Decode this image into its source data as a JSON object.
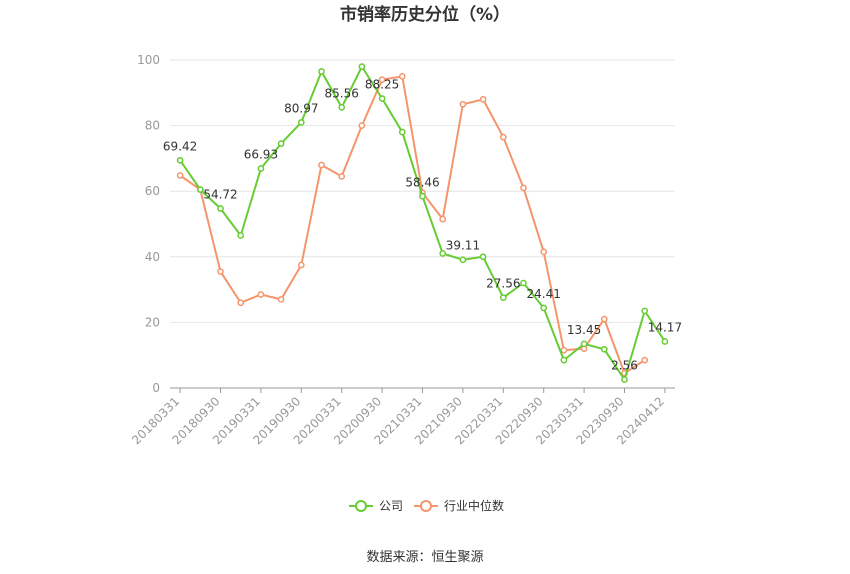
{
  "chart_data": {
    "type": "line",
    "title": "市销率历史分位（%）",
    "xlabel": "",
    "ylabel": "",
    "ylim": [
      0,
      100
    ],
    "yticks": [
      0,
      20,
      40,
      60,
      80,
      100
    ],
    "grid": true,
    "legend_position": "bottom",
    "x": [
      "20180331",
      "",
      "20180930",
      "",
      "20190331",
      "",
      "20190930",
      "",
      "20200331",
      "",
      "20200930",
      "",
      "20210331",
      "",
      "20210930",
      "",
      "20220331",
      "",
      "20220930",
      "",
      "20230331",
      "",
      "20230930",
      "",
      "20240412"
    ],
    "series": [
      {
        "name": "公司",
        "color": "#66cc33",
        "values": [
          69.42,
          60.5,
          54.72,
          46.5,
          66.93,
          74.5,
          80.97,
          96.5,
          85.56,
          98.0,
          88.25,
          78.0,
          58.46,
          41.0,
          39.11,
          40.0,
          27.56,
          32.0,
          24.41,
          8.5,
          13.45,
          11.8,
          2.56,
          23.5,
          14.17
        ],
        "data_labels": [
          {
            "index": 0,
            "text": "69.42"
          },
          {
            "index": 2,
            "text": "54.72"
          },
          {
            "index": 4,
            "text": "66.93"
          },
          {
            "index": 6,
            "text": "80.97"
          },
          {
            "index": 8,
            "text": "85.56"
          },
          {
            "index": 10,
            "text": "88.25"
          },
          {
            "index": 12,
            "text": "58.46"
          },
          {
            "index": 14,
            "text": "39.11"
          },
          {
            "index": 16,
            "text": "27.56"
          },
          {
            "index": 18,
            "text": "24.41"
          },
          {
            "index": 20,
            "text": "13.45"
          },
          {
            "index": 22,
            "text": "2.56"
          },
          {
            "index": 24,
            "text": "14.17"
          }
        ]
      },
      {
        "name": "行业中位数",
        "color": "#f4956b",
        "values": [
          64.8,
          60.5,
          35.5,
          26.0,
          28.5,
          27.0,
          37.5,
          68.0,
          64.5,
          80.0,
          94.0,
          95.0,
          59.5,
          51.5,
          86.5,
          88.0,
          76.5,
          61.0,
          41.5,
          11.5,
          12.0,
          21.0,
          4.5,
          8.5,
          null
        ]
      }
    ]
  },
  "source_text": "数据来源：恒生聚源"
}
